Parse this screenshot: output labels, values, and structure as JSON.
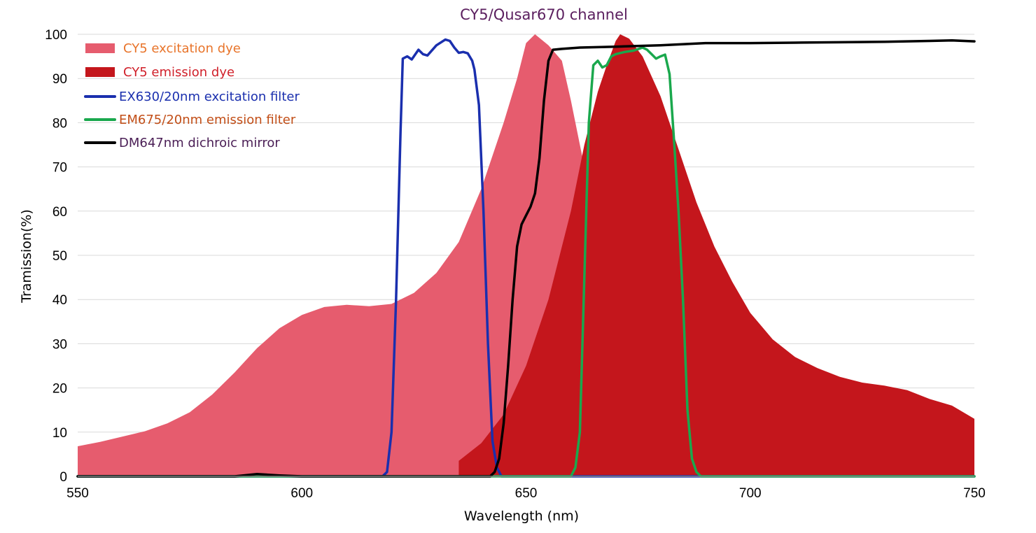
{
  "chart_data": {
    "type": "area",
    "title": "CY5/Qusar670 channel",
    "title_color": "#5a1e5e",
    "xlabel": "Wavelength (nm)",
    "ylabel": "Tramission(%)",
    "xlim": [
      550,
      750
    ],
    "ylim": [
      0,
      100
    ],
    "x_ticks": [
      "550",
      "600",
      "650",
      "700",
      "750"
    ],
    "y_ticks": [
      "0",
      "10",
      "20",
      "30",
      "40",
      "50",
      "60",
      "70",
      "80",
      "90",
      "100"
    ],
    "grid": "horizontal",
    "legend_position": "top-left",
    "series": [
      {
        "name": "CY5 excitation dye",
        "kind": "area",
        "color": "#e65c6e",
        "label_color": "#e8742a",
        "points": [
          [
            550,
            6.8
          ],
          [
            555,
            7.8
          ],
          [
            560,
            9.0
          ],
          [
            565,
            10.2
          ],
          [
            570,
            12.0
          ],
          [
            575,
            14.5
          ],
          [
            580,
            18.5
          ],
          [
            585,
            23.5
          ],
          [
            590,
            29.0
          ],
          [
            595,
            33.5
          ],
          [
            600,
            36.5
          ],
          [
            605,
            38.3
          ],
          [
            610,
            38.8
          ],
          [
            615,
            38.5
          ],
          [
            620,
            39.0
          ],
          [
            625,
            41.5
          ],
          [
            630,
            46.0
          ],
          [
            635,
            53.0
          ],
          [
            640,
            65.0
          ],
          [
            645,
            80.0
          ],
          [
            648,
            90.0
          ],
          [
            650,
            98.0
          ],
          [
            652,
            100.0
          ],
          [
            655,
            97.5
          ],
          [
            658,
            94.0
          ],
          [
            660,
            85.0
          ],
          [
            662,
            75.0
          ],
          [
            665,
            60.0
          ],
          [
            668,
            45.0
          ],
          [
            670,
            35.0
          ],
          [
            673,
            25.0
          ],
          [
            676,
            16.0
          ],
          [
            680,
            9.0
          ],
          [
            685,
            4.0
          ],
          [
            690,
            1.0
          ],
          [
            695,
            0.0
          ]
        ]
      },
      {
        "name": "CY5 emission dye",
        "kind": "area",
        "color": "#c4161c",
        "label_color": "#d0202a",
        "points": [
          [
            635,
            3.5
          ],
          [
            640,
            7.5
          ],
          [
            645,
            14.0
          ],
          [
            650,
            25.0
          ],
          [
            655,
            40.0
          ],
          [
            660,
            60.0
          ],
          [
            663,
            75.0
          ],
          [
            666,
            87.0
          ],
          [
            668,
            93.0
          ],
          [
            670,
            98.5
          ],
          [
            671,
            100.0
          ],
          [
            673,
            99.0
          ],
          [
            676,
            95.0
          ],
          [
            680,
            86.0
          ],
          [
            684,
            74.0
          ],
          [
            688,
            62.0
          ],
          [
            692,
            52.0
          ],
          [
            696,
            44.0
          ],
          [
            700,
            37.0
          ],
          [
            705,
            31.0
          ],
          [
            710,
            27.0
          ],
          [
            715,
            24.5
          ],
          [
            720,
            22.5
          ],
          [
            725,
            21.2
          ],
          [
            730,
            20.5
          ],
          [
            735,
            19.5
          ],
          [
            740,
            17.5
          ],
          [
            745,
            16.0
          ],
          [
            750,
            13.0
          ]
        ]
      },
      {
        "name": "EX630/20nm excitation filter",
        "kind": "line",
        "color": "#1a2fae",
        "label_color": "#1a2fae",
        "points": [
          [
            550,
            0
          ],
          [
            618,
            0
          ],
          [
            619,
            1
          ],
          [
            620,
            10
          ],
          [
            621,
            40
          ],
          [
            622,
            78
          ],
          [
            622.5,
            94.5
          ],
          [
            623.5,
            95
          ],
          [
            624.5,
            94.3
          ],
          [
            626,
            96.5
          ],
          [
            627,
            95.5
          ],
          [
            628,
            95.2
          ],
          [
            630,
            97.5
          ],
          [
            632,
            98.8
          ],
          [
            633,
            98.5
          ],
          [
            634,
            97
          ],
          [
            635,
            95.8
          ],
          [
            636,
            96
          ],
          [
            637,
            95.7
          ],
          [
            638,
            94
          ],
          [
            638.5,
            92
          ],
          [
            639.5,
            84
          ],
          [
            640.5,
            60
          ],
          [
            641.5,
            30
          ],
          [
            642.5,
            8
          ],
          [
            643.5,
            2
          ],
          [
            644.5,
            0
          ],
          [
            750,
            0
          ]
        ]
      },
      {
        "name": "EM675/20nm emission filter",
        "kind": "line",
        "color": "#1aa84d",
        "label_color": "#c24e17",
        "points": [
          [
            550,
            0
          ],
          [
            660,
            0
          ],
          [
            661,
            2
          ],
          [
            662,
            10
          ],
          [
            663,
            45
          ],
          [
            664,
            80
          ],
          [
            665,
            93
          ],
          [
            666,
            94
          ],
          [
            667,
            92.5
          ],
          [
            668,
            93
          ],
          [
            669,
            95
          ],
          [
            670,
            95.5
          ],
          [
            672,
            96
          ],
          [
            674,
            96.3
          ],
          [
            676,
            97
          ],
          [
            677,
            96.5
          ],
          [
            678,
            95.5
          ],
          [
            679,
            94.5
          ],
          [
            680,
            95
          ],
          [
            681,
            95.4
          ],
          [
            682,
            91
          ],
          [
            683,
            76
          ],
          [
            684,
            60
          ],
          [
            685,
            40
          ],
          [
            686,
            15
          ],
          [
            687,
            4
          ],
          [
            688,
            1
          ],
          [
            689,
            0
          ],
          [
            750,
            0
          ]
        ]
      },
      {
        "name": "DM647nm dichroic mirror",
        "kind": "line",
        "color": "#000000",
        "label_color": "#4a1e55",
        "points": [
          [
            550,
            0
          ],
          [
            585,
            0
          ],
          [
            590,
            0.5
          ],
          [
            595,
            0.2
          ],
          [
            600,
            0
          ],
          [
            642,
            0
          ],
          [
            643,
            1
          ],
          [
            644,
            4
          ],
          [
            645,
            12
          ],
          [
            646,
            25
          ],
          [
            647,
            40
          ],
          [
            648,
            52
          ],
          [
            649,
            57
          ],
          [
            650,
            59
          ],
          [
            651,
            61
          ],
          [
            652,
            64
          ],
          [
            653,
            72
          ],
          [
            654,
            85
          ],
          [
            655,
            94
          ],
          [
            656,
            96.5
          ],
          [
            658,
            96.7
          ],
          [
            662,
            97
          ],
          [
            670,
            97.2
          ],
          [
            680,
            97.5
          ],
          [
            690,
            98
          ],
          [
            700,
            98
          ],
          [
            710,
            98.1
          ],
          [
            720,
            98.2
          ],
          [
            730,
            98.3
          ],
          [
            740,
            98.5
          ],
          [
            745,
            98.6
          ],
          [
            750,
            98.4
          ]
        ]
      }
    ]
  }
}
